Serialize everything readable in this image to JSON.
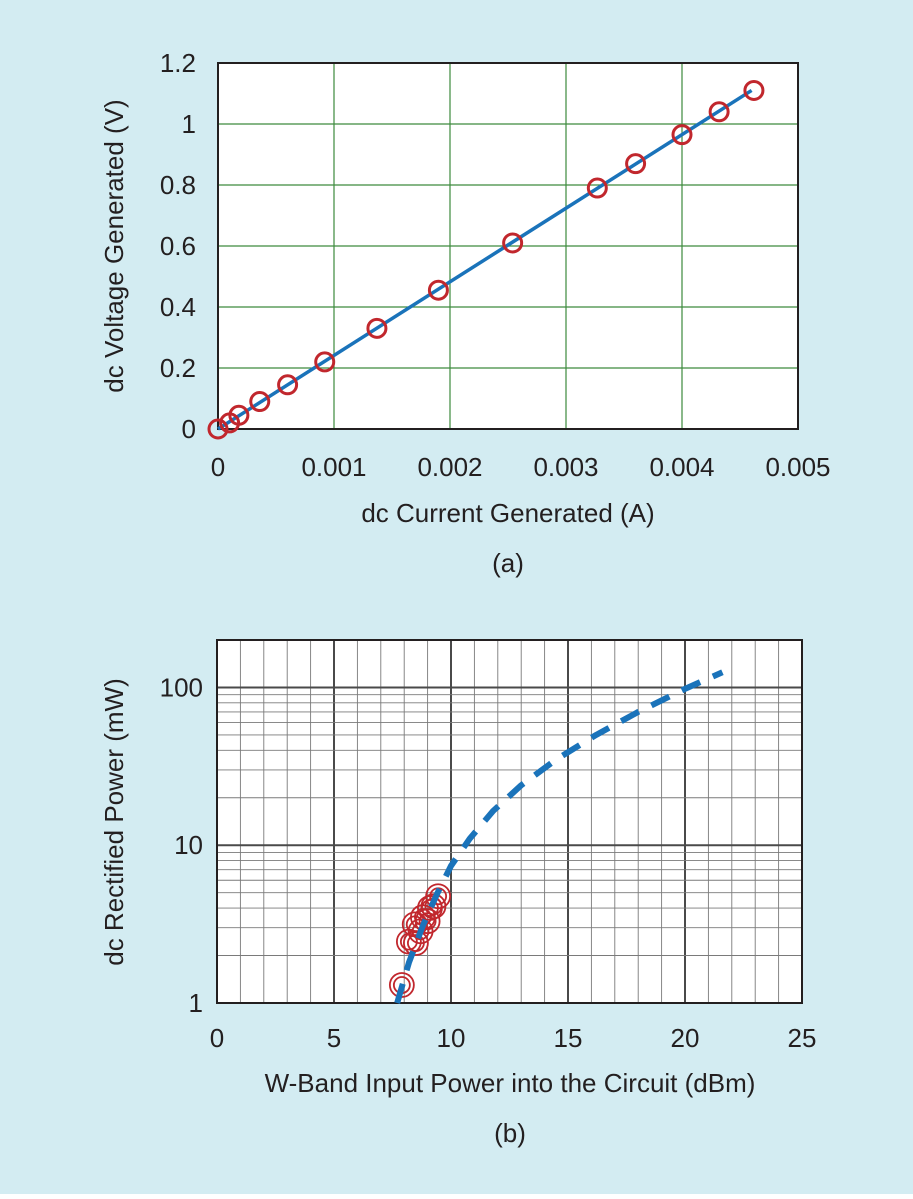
{
  "theme": {
    "background": "#d3ecf2",
    "plot_background": "#ffffff",
    "grid_color_a": "#3d8a3d",
    "grid_color_b": "#7a7a7a",
    "line_color": "#1a73ba",
    "marker_color": "#c1272d",
    "text_color": "#231f20"
  },
  "chart_data": [
    {
      "id": "a",
      "type": "line",
      "panel_label": "(a)",
      "title": "",
      "xlabel": "dc Current Generated (A)",
      "ylabel": "dc Voltage Generated (V)",
      "xlim": [
        0,
        0.005
      ],
      "ylim": [
        0,
        1.2
      ],
      "xticks": [
        0,
        0.001,
        0.002,
        0.003,
        0.004,
        0.005
      ],
      "xtick_labels": [
        "0",
        "0.001",
        "0.002",
        "0.003",
        "0.004",
        "0.005"
      ],
      "yticks": [
        0,
        0.2,
        0.4,
        0.6,
        0.8,
        1,
        1.2
      ],
      "ytick_labels": [
        "0",
        "0.2",
        "0.4",
        "0.6",
        "0.8",
        "1",
        "1.2"
      ],
      "grid": true,
      "legend": "none",
      "series": [
        {
          "name": "fit line",
          "style": "solid",
          "x": [
            0,
            0.0046
          ],
          "y": [
            0,
            1.11
          ]
        },
        {
          "name": "measured",
          "style": "circle-markers",
          "x": [
            0,
            0.0001,
            0.00018,
            0.00036,
            0.0006,
            0.00092,
            0.00137,
            0.0019,
            0.00254,
            0.00327,
            0.0036,
            0.004,
            0.00432,
            0.00462
          ],
          "y": [
            0,
            0.02,
            0.045,
            0.09,
            0.145,
            0.22,
            0.33,
            0.455,
            0.61,
            0.79,
            0.87,
            0.965,
            1.04,
            1.11
          ]
        }
      ]
    },
    {
      "id": "b",
      "type": "scatter",
      "panel_label": "(b)",
      "title": "",
      "xlabel": "W-Band Input Power into the Circuit (dBm)",
      "ylabel": "dc Rectified Power (mW)",
      "xlim": [
        0,
        25
      ],
      "ylim": [
        1,
        200
      ],
      "yscale": "log",
      "xticks": [
        0,
        5,
        10,
        15,
        20,
        25
      ],
      "xtick_labels": [
        "0",
        "5",
        "10",
        "15",
        "20",
        "25"
      ],
      "yticks": [
        1,
        10,
        100
      ],
      "ytick_labels": [
        "1",
        "10",
        "100"
      ],
      "grid": true,
      "legend": "none",
      "series": [
        {
          "name": "trend",
          "style": "dashed",
          "x": [
            7.7,
            8.2,
            8.8,
            9.4,
            10.0,
            10.8,
            11.8,
            13.0,
            14.5,
            16.2,
            18.0,
            20.0,
            21.6
          ],
          "y": [
            1.0,
            1.8,
            3.1,
            4.9,
            7.4,
            11.0,
            16.5,
            24.0,
            35.0,
            50.0,
            70.0,
            98.0,
            125.0
          ]
        },
        {
          "name": "measured",
          "style": "double-circle-markers",
          "x": [
            7.9,
            8.2,
            8.5,
            8.45,
            8.7,
            8.8,
            9.0,
            9.1,
            9.25,
            9.45
          ],
          "y": [
            1.3,
            2.45,
            2.4,
            3.15,
            2.85,
            3.5,
            3.3,
            4.0,
            4.1,
            4.75
          ]
        }
      ]
    }
  ]
}
